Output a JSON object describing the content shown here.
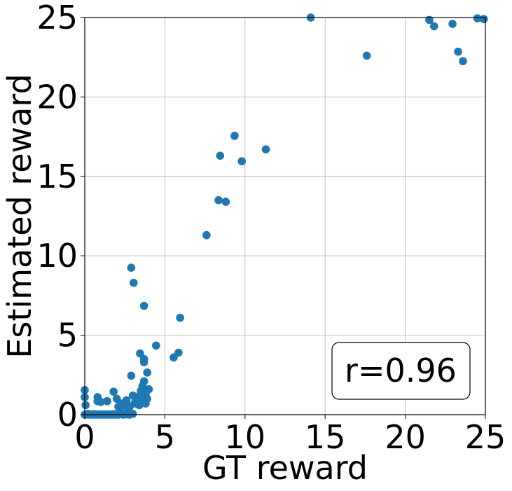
{
  "chart_data": {
    "type": "scatter",
    "xlabel": "GT reward",
    "ylabel": "Estimated reward",
    "xlim": [
      0,
      25
    ],
    "ylim": [
      0,
      25
    ],
    "xticks": [
      "0",
      "5",
      "10",
      "15",
      "20",
      "25"
    ],
    "yticks": [
      "0",
      "5",
      "10",
      "15",
      "20",
      "25"
    ],
    "grid": true,
    "point_color": "#1f77b4",
    "annotation": {
      "text": "r=0.96",
      "placement": "bottom-right"
    },
    "points": [
      [
        0.0,
        0.0
      ],
      [
        0.1,
        0.0
      ],
      [
        0.2,
        0.05
      ],
      [
        0.3,
        0.0
      ],
      [
        0.4,
        0.02
      ],
      [
        0.5,
        0.0
      ],
      [
        0.6,
        0.03
      ],
      [
        0.7,
        0.0
      ],
      [
        0.8,
        0.02
      ],
      [
        0.9,
        0.0
      ],
      [
        1.0,
        0.01
      ],
      [
        1.1,
        0.0
      ],
      [
        1.2,
        0.02
      ],
      [
        1.3,
        0.0
      ],
      [
        1.4,
        0.01
      ],
      [
        1.5,
        0.0
      ],
      [
        1.6,
        0.02
      ],
      [
        1.7,
        0.0
      ],
      [
        1.8,
        0.03
      ],
      [
        1.9,
        0.0
      ],
      [
        2.0,
        0.02
      ],
      [
        2.1,
        0.0
      ],
      [
        2.2,
        0.05
      ],
      [
        2.4,
        0.0
      ],
      [
        2.6,
        0.02
      ],
      [
        2.8,
        0.0
      ],
      [
        3.0,
        0.05
      ],
      [
        0.0,
        1.55
      ],
      [
        0.0,
        1.1
      ],
      [
        0.05,
        0.6
      ],
      [
        0.8,
        1.1
      ],
      [
        0.8,
        0.85
      ],
      [
        1.0,
        0.8
      ],
      [
        1.4,
        0.85
      ],
      [
        1.8,
        1.45
      ],
      [
        2.0,
        1.0
      ],
      [
        2.1,
        0.5
      ],
      [
        2.2,
        0.3
      ],
      [
        2.3,
        0.7
      ],
      [
        2.5,
        0.6
      ],
      [
        2.6,
        0.9
      ],
      [
        2.7,
        0.4
      ],
      [
        2.8,
        0.5
      ],
      [
        3.0,
        1.2
      ],
      [
        3.1,
        0.7
      ],
      [
        3.2,
        0.9
      ],
      [
        3.3,
        1.1
      ],
      [
        3.4,
        0.6
      ],
      [
        3.5,
        1.5
      ],
      [
        3.6,
        1.8
      ],
      [
        3.7,
        2.1
      ],
      [
        3.8,
        1.3
      ],
      [
        3.9,
        1.0
      ],
      [
        4.0,
        1.6
      ],
      [
        3.5,
        1.3
      ],
      [
        3.6,
        0.9
      ],
      [
        3.8,
        0.7
      ],
      [
        2.9,
        2.45
      ],
      [
        3.9,
        2.65
      ],
      [
        3.45,
        3.85
      ],
      [
        3.7,
        3.3
      ],
      [
        3.7,
        3.5
      ],
      [
        4.45,
        4.35
      ],
      [
        2.9,
        9.25
      ],
      [
        3.05,
        8.3
      ],
      [
        3.7,
        6.85
      ],
      [
        5.55,
        3.6
      ],
      [
        5.85,
        3.9
      ],
      [
        5.95,
        6.1
      ],
      [
        7.6,
        11.3
      ],
      [
        8.35,
        13.5
      ],
      [
        8.45,
        16.3
      ],
      [
        8.8,
        13.4
      ],
      [
        9.35,
        17.55
      ],
      [
        9.8,
        15.95
      ],
      [
        11.3,
        16.7
      ],
      [
        14.1,
        25.0
      ],
      [
        17.6,
        22.6
      ],
      [
        21.5,
        24.85
      ],
      [
        21.8,
        24.45
      ],
      [
        22.95,
        24.6
      ],
      [
        23.3,
        22.85
      ],
      [
        23.6,
        22.25
      ],
      [
        24.5,
        24.95
      ],
      [
        24.9,
        24.9
      ]
    ]
  }
}
